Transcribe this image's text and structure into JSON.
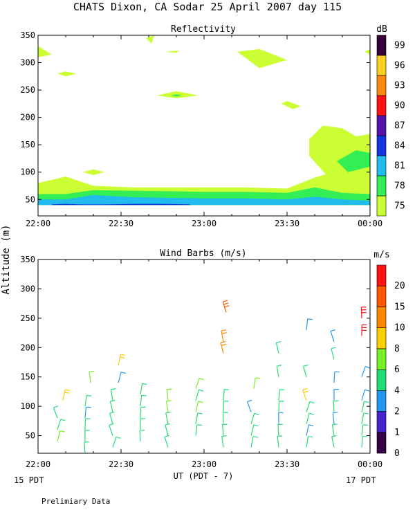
{
  "title": "CHATS Dixon, CA  Sodar  25 April 2007  day 115",
  "ylabel": "Altitude (m)",
  "xlabel": "UT  (PDT - 7)",
  "footer": "Prelimiary Data",
  "x_date_left": "15 PDT",
  "x_date_right": "17 PDT",
  "chart_data": [
    {
      "type": "contour",
      "title": "Reflectivity",
      "xlim": [
        "22:00",
        "00:00"
      ],
      "ylim": [
        20,
        350
      ],
      "yticks": [
        50,
        100,
        150,
        200,
        250,
        300,
        350
      ],
      "xticks": [
        "22:00",
        "22:30",
        "23:00",
        "23:30",
        "00:00"
      ],
      "colorbar": {
        "unit": "dB",
        "ticks": [
          "75",
          "78",
          "81",
          "84",
          "87",
          "90",
          "93",
          "96",
          "99"
        ],
        "colors": [
          "#ccff33",
          "#33ee55",
          "#22bbee",
          "#1133dd",
          "#5511aa",
          "#ff1111",
          "#ff8811",
          "#ffcc22",
          "#33003a"
        ]
      },
      "bands": [
        {
          "level": "75",
          "x": [
            "22:00",
            "22:10",
            "22:20",
            "22:35",
            "23:00",
            "23:15",
            "23:30",
            "23:40",
            "23:50",
            "00:00"
          ],
          "top": [
            80,
            92,
            75,
            72,
            72,
            72,
            70,
            90,
            105,
            110
          ],
          "bottom": [
            40,
            40,
            40,
            40,
            40,
            40,
            40,
            40,
            40,
            40
          ]
        },
        {
          "level": "78",
          "x": [
            "22:00",
            "22:10",
            "22:20",
            "22:35",
            "23:00",
            "23:15",
            "23:30",
            "23:40",
            "23:50",
            "00:00"
          ],
          "top": [
            60,
            60,
            67,
            66,
            64,
            64,
            62,
            72,
            62,
            60
          ],
          "bottom": [
            40,
            40,
            40,
            40,
            40,
            40,
            40,
            40,
            40,
            40
          ]
        },
        {
          "level": "81",
          "x": [
            "22:00",
            "22:10",
            "22:20",
            "22:35",
            "23:00",
            "23:15",
            "23:30",
            "23:40",
            "23:50",
            "00:00"
          ],
          "top": [
            50,
            50,
            58,
            54,
            52,
            52,
            50,
            55,
            50,
            48
          ],
          "bottom": [
            40,
            40,
            40,
            40,
            40,
            40,
            40,
            40,
            40,
            40
          ]
        },
        {
          "level": "84",
          "x": [
            "22:05",
            "22:10",
            "22:15",
            "22:25",
            "22:35",
            "22:45",
            "22:55"
          ],
          "top": [
            41,
            42,
            41,
            41,
            42,
            42,
            41
          ],
          "bottom": [
            40,
            40,
            40,
            40,
            40,
            40,
            40
          ]
        }
      ],
      "blobs": [
        {
          "level": "75",
          "points": [
            [
              "22:00",
              330
            ],
            [
              "22:05",
              315
            ],
            [
              "22:00",
              310
            ]
          ]
        },
        {
          "level": "75",
          "points": [
            [
              "22:07",
              280
            ],
            [
              "22:10",
              275
            ],
            [
              "22:14",
              280
            ],
            [
              "22:10",
              284
            ]
          ]
        },
        {
          "level": "75",
          "points": [
            [
              "22:16",
              100
            ],
            [
              "22:20",
              95
            ],
            [
              "22:24",
              100
            ],
            [
              "22:20",
              105
            ]
          ]
        },
        {
          "level": "75",
          "points": [
            [
              "22:39",
              345
            ],
            [
              "22:41",
              335
            ],
            [
              "22:42",
              350
            ]
          ]
        },
        {
          "level": "75",
          "points": [
            [
              "22:46",
              320
            ],
            [
              "22:50",
              318
            ],
            [
              "22:51",
              322
            ]
          ]
        },
        {
          "level": "75",
          "points": [
            [
              "22:43",
              240
            ],
            [
              "22:50",
              235
            ],
            [
              "22:58",
              240
            ],
            [
              "22:50",
              248
            ]
          ]
        },
        {
          "level": "78",
          "points": [
            [
              "22:48",
              240
            ],
            [
              "22:50",
              238
            ],
            [
              "22:52",
              240
            ],
            [
              "22:50",
              242
            ]
          ]
        },
        {
          "level": "75",
          "points": [
            [
              "23:12",
              320
            ],
            [
              "23:20",
              325
            ],
            [
              "23:30",
              305
            ],
            [
              "23:20",
              290
            ]
          ]
        },
        {
          "level": "75",
          "points": [
            [
              "23:28",
              225
            ],
            [
              "23:32",
              215
            ],
            [
              "23:35",
              220
            ],
            [
              "23:30",
              230
            ]
          ]
        },
        {
          "level": "75",
          "points": [
            [
              "23:58",
              320
            ],
            [
              "00:00",
              325
            ],
            [
              "00:00",
              315
            ]
          ]
        },
        {
          "level": "75",
          "points": [
            [
              "23:38",
              160
            ],
            [
              "23:43",
              185
            ],
            [
              "23:50",
              180
            ],
            [
              "23:55",
              165
            ],
            [
              "00:00",
              170
            ],
            [
              "00:00",
              110
            ],
            [
              "23:45",
              90
            ],
            [
              "23:38",
              130
            ]
          ]
        },
        {
          "level": "78",
          "points": [
            [
              "23:48",
              120
            ],
            [
              "23:55",
              140
            ],
            [
              "00:00",
              135
            ],
            [
              "00:00",
              110
            ],
            [
              "23:52",
              100
            ]
          ]
        }
      ]
    },
    {
      "type": "wind-barbs",
      "title": "Wind Barbs (m/s)",
      "xlim": [
        "22:00",
        "00:00"
      ],
      "ylim": [
        20,
        350
      ],
      "yticks": [
        50,
        100,
        150,
        200,
        250,
        300,
        350
      ],
      "xticks": [
        "22:00",
        "22:30",
        "23:00",
        "23:30",
        "00:00"
      ],
      "colorbar": {
        "unit": "m/s",
        "ticks": [
          "0",
          "1",
          "2",
          "4",
          "6",
          "8",
          "10",
          "15",
          "20"
        ],
        "colors": [
          "#330044",
          "#4422cc",
          "#2299ee",
          "#22dd77",
          "#77ee22",
          "#ffcc00",
          "#ff8800",
          "#ff5500",
          "#ff1111"
        ]
      },
      "barbs": [
        {
          "t": "22:07",
          "h": 80,
          "speed": 4
        },
        {
          "t": "22:07",
          "h": 60,
          "speed": 5
        },
        {
          "t": "22:07",
          "h": 40,
          "speed": 6
        },
        {
          "t": "22:09",
          "h": 110,
          "speed": 8
        },
        {
          "t": "22:17",
          "h": 100,
          "speed": 5
        },
        {
          "t": "22:17",
          "h": 80,
          "speed": 3
        },
        {
          "t": "22:17",
          "h": 60,
          "speed": 4
        },
        {
          "t": "22:17",
          "h": 40,
          "speed": 5
        },
        {
          "t": "22:17",
          "h": 20,
          "speed": 4
        },
        {
          "t": "22:19",
          "h": 140,
          "speed": 6
        },
        {
          "t": "22:27",
          "h": 110,
          "speed": 5
        },
        {
          "t": "22:27",
          "h": 90,
          "speed": 4
        },
        {
          "t": "22:27",
          "h": 70,
          "speed": 4
        },
        {
          "t": "22:27",
          "h": 50,
          "speed": 5
        },
        {
          "t": "22:27",
          "h": 30,
          "speed": 4
        },
        {
          "t": "22:29",
          "h": 140,
          "speed": 3
        },
        {
          "t": "22:29",
          "h": 170,
          "speed": 8
        },
        {
          "t": "22:37",
          "h": 120,
          "speed": 4
        },
        {
          "t": "22:37",
          "h": 100,
          "speed": 5
        },
        {
          "t": "22:37",
          "h": 80,
          "speed": 4
        },
        {
          "t": "22:37",
          "h": 60,
          "speed": 4
        },
        {
          "t": "22:37",
          "h": 40,
          "speed": 5
        },
        {
          "t": "22:47",
          "h": 110,
          "speed": 6
        },
        {
          "t": "22:47",
          "h": 90,
          "speed": 6
        },
        {
          "t": "22:47",
          "h": 70,
          "speed": 4
        },
        {
          "t": "22:47",
          "h": 50,
          "speed": 5
        },
        {
          "t": "22:47",
          "h": 30,
          "speed": 4
        },
        {
          "t": "22:57",
          "h": 130,
          "speed": 6
        },
        {
          "t": "22:57",
          "h": 110,
          "speed": 5
        },
        {
          "t": "22:57",
          "h": 90,
          "speed": 6
        },
        {
          "t": "22:57",
          "h": 70,
          "speed": 4
        },
        {
          "t": "22:57",
          "h": 50,
          "speed": 4
        },
        {
          "t": "23:07",
          "h": 110,
          "speed": 4
        },
        {
          "t": "23:07",
          "h": 90,
          "speed": 5
        },
        {
          "t": "23:07",
          "h": 70,
          "speed": 4
        },
        {
          "t": "23:07",
          "h": 50,
          "speed": 4
        },
        {
          "t": "23:07",
          "h": 30,
          "speed": 5
        },
        {
          "t": "23:07",
          "h": 210,
          "speed": 10
        },
        {
          "t": "23:07",
          "h": 190,
          "speed": 10
        },
        {
          "t": "23:08",
          "h": 260,
          "speed": 15
        },
        {
          "t": "23:17",
          "h": 90,
          "speed": 3
        },
        {
          "t": "23:17",
          "h": 70,
          "speed": 4
        },
        {
          "t": "23:17",
          "h": 50,
          "speed": 4
        },
        {
          "t": "23:17",
          "h": 30,
          "speed": 5
        },
        {
          "t": "23:18",
          "h": 130,
          "speed": 6
        },
        {
          "t": "23:27",
          "h": 110,
          "speed": 4
        },
        {
          "t": "23:27",
          "h": 90,
          "speed": 4
        },
        {
          "t": "23:27",
          "h": 70,
          "speed": 3
        },
        {
          "t": "23:27",
          "h": 50,
          "speed": 4
        },
        {
          "t": "23:27",
          "h": 30,
          "speed": 4
        },
        {
          "t": "23:27",
          "h": 150,
          "speed": 4
        },
        {
          "t": "23:27",
          "h": 190,
          "speed": 5
        },
        {
          "t": "23:37",
          "h": 150,
          "speed": 4
        },
        {
          "t": "23:37",
          "h": 110,
          "speed": 8
        },
        {
          "t": "23:37",
          "h": 90,
          "speed": 4
        },
        {
          "t": "23:37",
          "h": 70,
          "speed": 4
        },
        {
          "t": "23:37",
          "h": 50,
          "speed": 3
        },
        {
          "t": "23:37",
          "h": 30,
          "speed": 4
        },
        {
          "t": "23:37",
          "h": 230,
          "speed": 3
        },
        {
          "t": "23:47",
          "h": 140,
          "speed": 3
        },
        {
          "t": "23:47",
          "h": 110,
          "speed": 3
        },
        {
          "t": "23:47",
          "h": 90,
          "speed": 4
        },
        {
          "t": "23:47",
          "h": 70,
          "speed": 3
        },
        {
          "t": "23:47",
          "h": 50,
          "speed": 4
        },
        {
          "t": "23:47",
          "h": 30,
          "speed": 4
        },
        {
          "t": "23:47",
          "h": 180,
          "speed": 4
        },
        {
          "t": "23:47",
          "h": 210,
          "speed": 3
        },
        {
          "t": "23:57",
          "h": 150,
          "speed": 3
        },
        {
          "t": "23:57",
          "h": 110,
          "speed": 3
        },
        {
          "t": "23:57",
          "h": 90,
          "speed": 4
        },
        {
          "t": "23:57",
          "h": 70,
          "speed": 4
        },
        {
          "t": "23:57",
          "h": 50,
          "speed": 4
        },
        {
          "t": "23:57",
          "h": 30,
          "speed": 5
        },
        {
          "t": "23:57",
          "h": 220,
          "speed": 20
        },
        {
          "t": "23:57",
          "h": 250,
          "speed": 20
        }
      ]
    }
  ]
}
